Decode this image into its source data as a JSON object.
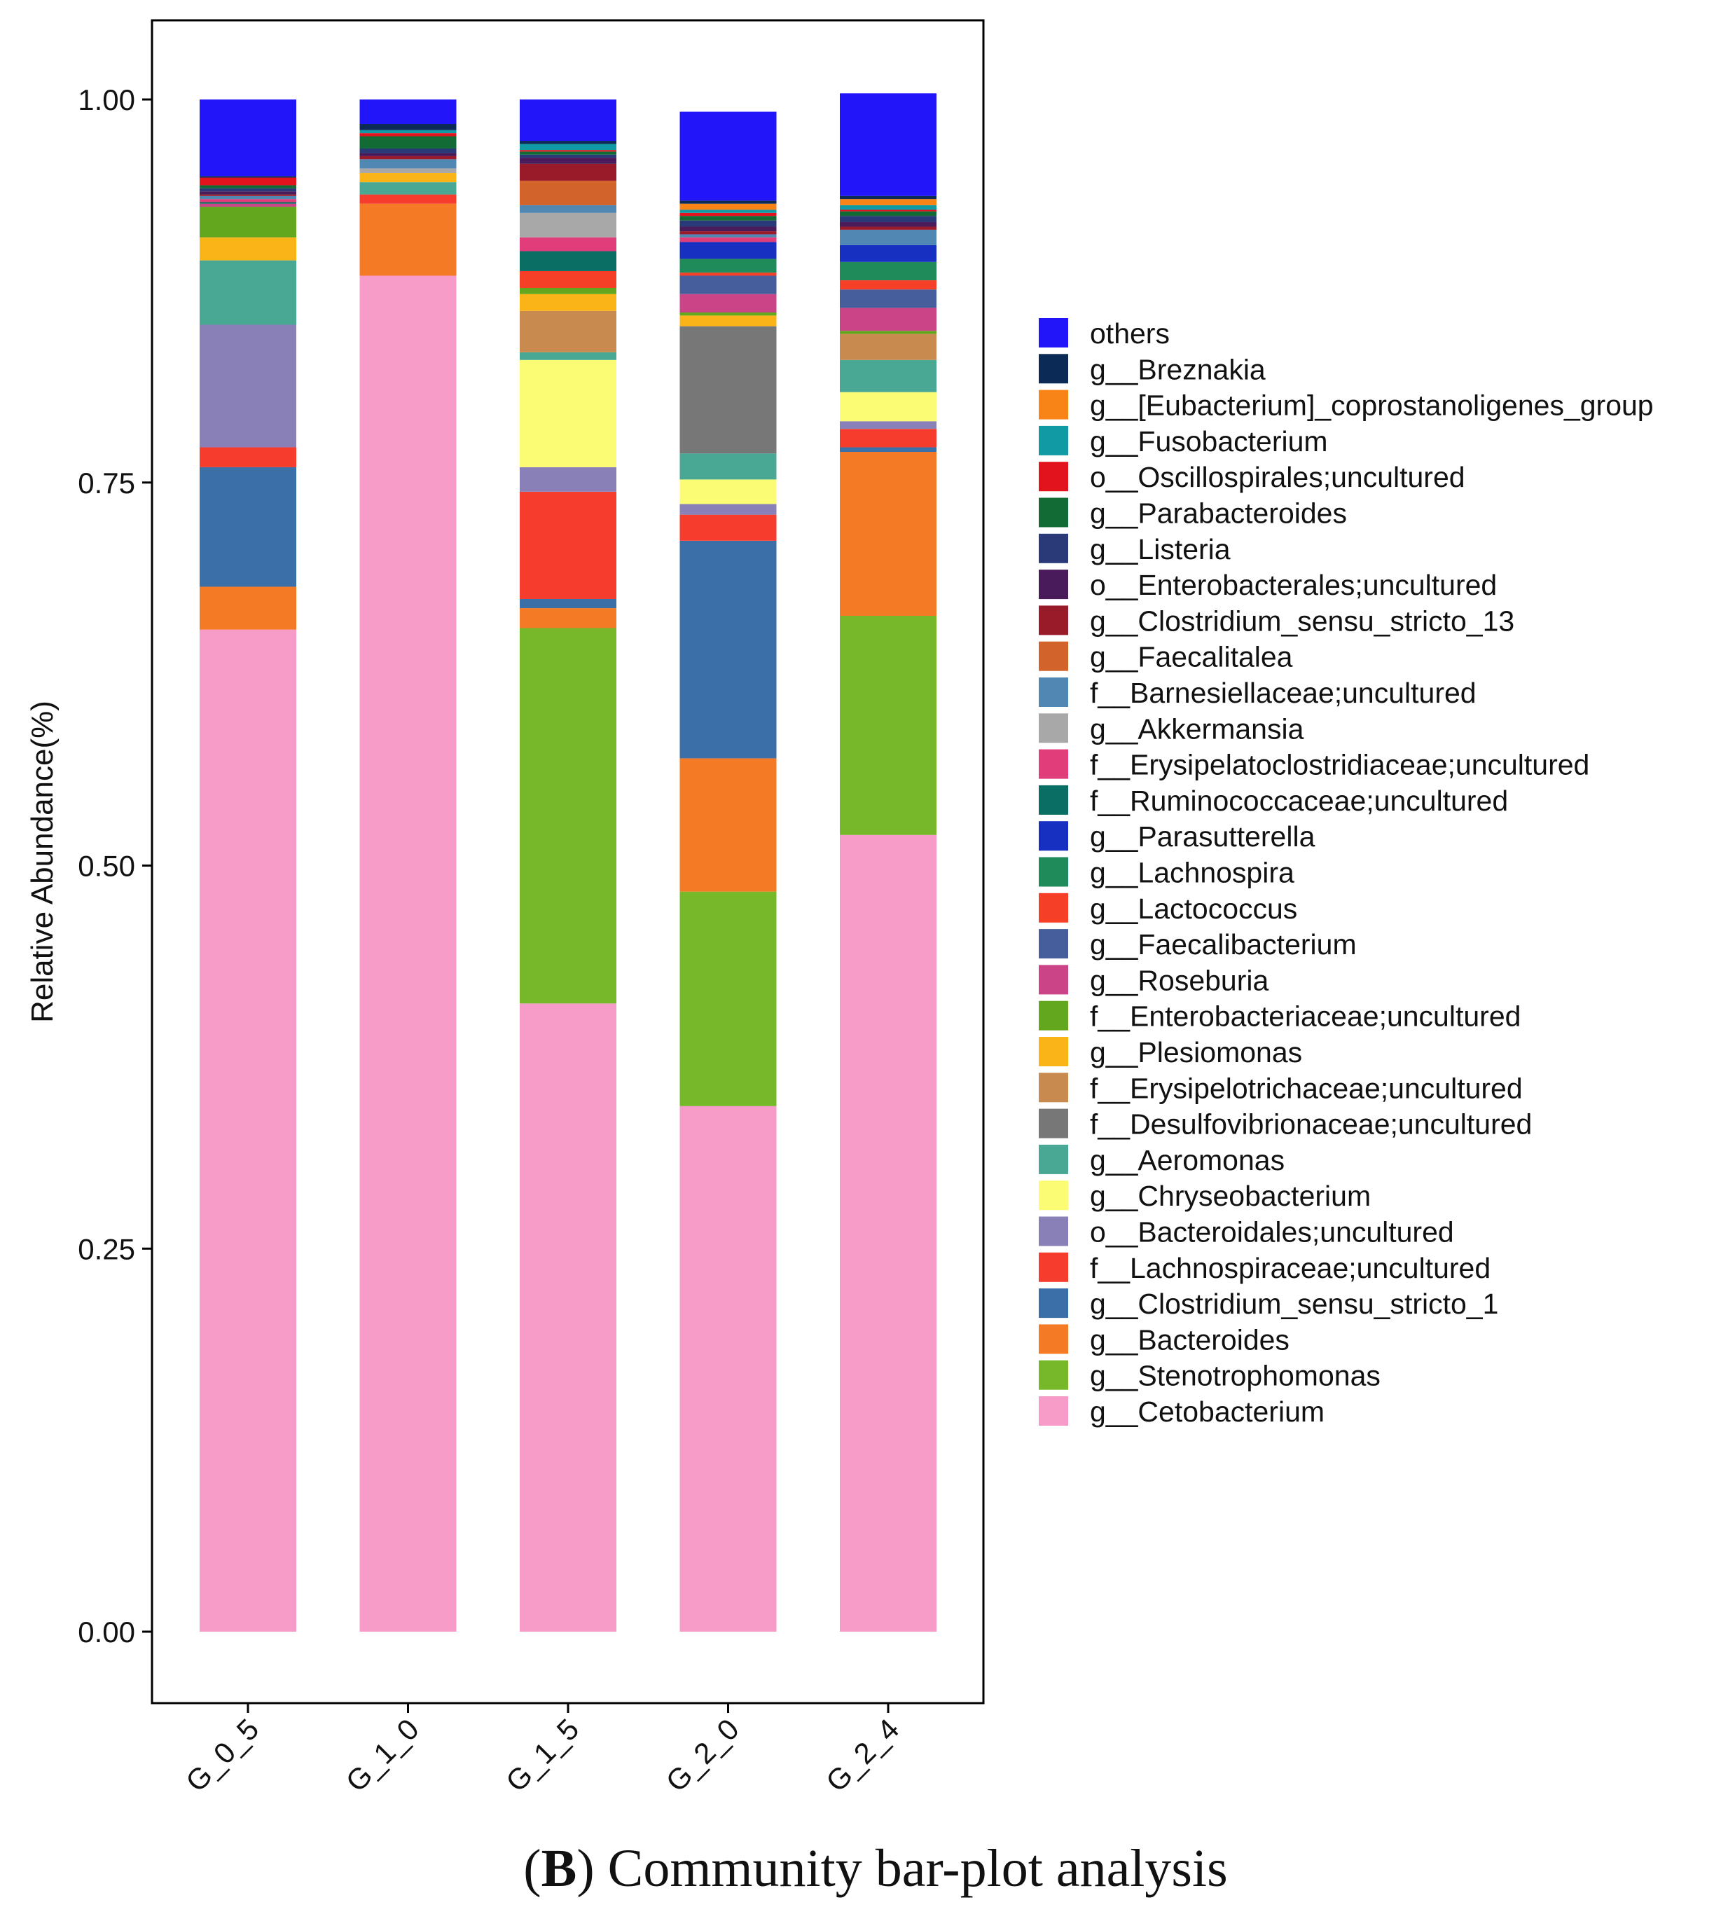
{
  "chart_data": {
    "type": "bar",
    "stacked": true,
    "title": "",
    "xlabel": "",
    "ylabel": "Relative Abundance(%)",
    "ylim": [
      -0.05,
      1.05
    ],
    "yticks": [
      "0.00",
      "0.25",
      "0.50",
      "0.75",
      "1.00"
    ],
    "grid": false,
    "legend_position": "right",
    "categories": [
      "G_0_5",
      "G_1_0",
      "G_1_5",
      "G_2_0",
      "G_2_4"
    ],
    "series": [
      {
        "name": "g__Cetobacterium",
        "color": "#f79cc8",
        "values": [
          0.654,
          0.885,
          0.41,
          0.343,
          0.52
        ]
      },
      {
        "name": "g__Stenotrophomonas",
        "color": "#76b82a",
        "values": [
          0.0,
          0.0,
          0.245,
          0.14,
          0.143
        ]
      },
      {
        "name": "g__Bacteroides",
        "color": "#f57a25",
        "values": [
          0.028,
          0.047,
          0.013,
          0.087,
          0.107
        ]
      },
      {
        "name": "g__Clostridium_sensu_stricto_1",
        "color": "#3a6fa8",
        "values": [
          0.078,
          0.0,
          0.006,
          0.142,
          0.003
        ]
      },
      {
        "name": "f__Lachnospiraceae;uncultured",
        "color": "#f53c2d",
        "values": [
          0.013,
          0.006,
          0.07,
          0.017,
          0.012
        ]
      },
      {
        "name": "o__Bacteroidales;uncultured",
        "color": "#8a80b8",
        "values": [
          0.08,
          0.0,
          0.016,
          0.007,
          0.005
        ]
      },
      {
        "name": "g__Chryseobacterium",
        "color": "#fcfc74",
        "values": [
          0.0,
          0.0,
          0.07,
          0.016,
          0.019
        ]
      },
      {
        "name": "g__Aeromonas",
        "color": "#48a894",
        "values": [
          0.042,
          0.008,
          0.005,
          0.017,
          0.021
        ]
      },
      {
        "name": "f__Desulfovibrionaceae;uncultured",
        "color": "#777777",
        "values": [
          0.0,
          0.0,
          0.0,
          0.083,
          0.0
        ]
      },
      {
        "name": "f__Erysipelotrichaceae;uncultured",
        "color": "#c98a50",
        "values": [
          0.0,
          0.0,
          0.027,
          0.0,
          0.017
        ]
      },
      {
        "name": "g__Plesiomonas",
        "color": "#fbb418",
        "values": [
          0.015,
          0.006,
          0.011,
          0.007,
          0.0
        ]
      },
      {
        "name": "f__Enterobacteriaceae;uncultured",
        "color": "#63a71e",
        "values": [
          0.02,
          0.0,
          0.004,
          0.002,
          0.002
        ]
      },
      {
        "name": "g__Roseburia",
        "color": "#cc4488",
        "values": [
          0.002,
          0.0,
          0.0,
          0.012,
          0.015
        ]
      },
      {
        "name": "g__Faecalibacterium",
        "color": "#475e9c",
        "values": [
          0.0,
          0.0,
          0.0,
          0.012,
          0.012
        ]
      },
      {
        "name": "g__Lactococcus",
        "color": "#f54027",
        "values": [
          0.0,
          0.0,
          0.011,
          0.002,
          0.006
        ]
      },
      {
        "name": "g__Lachnospira",
        "color": "#1f8a5a",
        "values": [
          0.0,
          0.0,
          0.0,
          0.009,
          0.012
        ]
      },
      {
        "name": "g__Parasutterella",
        "color": "#1730c2",
        "values": [
          0.0,
          0.0,
          0.0,
          0.011,
          0.011
        ]
      },
      {
        "name": "f__Ruminococcaceae;uncultured",
        "color": "#0a6e64",
        "values": [
          0.001,
          0.0,
          0.013,
          0.0,
          0.0
        ]
      },
      {
        "name": "f__Erysipelatoclostridiaceae;uncultured",
        "color": "#e03d7a",
        "values": [
          0.002,
          0.0,
          0.009,
          0.003,
          0.0
        ]
      },
      {
        "name": "g__Akkermansia",
        "color": "#a8a8a8",
        "values": [
          0.0,
          0.003,
          0.016,
          0.0,
          0.0
        ]
      },
      {
        "name": "f__Barnesiellaceae;uncultured",
        "color": "#5087b3",
        "values": [
          0.002,
          0.006,
          0.005,
          0.002,
          0.01
        ]
      },
      {
        "name": "g__Faecalitalea",
        "color": "#d2632a",
        "values": [
          0.0,
          0.0,
          0.016,
          0.0,
          0.0
        ]
      },
      {
        "name": "g__Clostridium_sensu_stricto_13",
        "color": "#991b2a",
        "values": [
          0.001,
          0.002,
          0.011,
          0.002,
          0.002
        ]
      },
      {
        "name": "o__Enterobacterales;uncultured",
        "color": "#4a1b5a",
        "values": [
          0.002,
          0.002,
          0.004,
          0.003,
          0.003
        ]
      },
      {
        "name": "g__Listeria",
        "color": "#2a3a78",
        "values": [
          0.002,
          0.003,
          0.002,
          0.004,
          0.004
        ]
      },
      {
        "name": "g__Parabacteroides",
        "color": "#126b35",
        "values": [
          0.002,
          0.008,
          0.002,
          0.003,
          0.003
        ]
      },
      {
        "name": "o__Oscillospirales;uncultured",
        "color": "#e3131e",
        "values": [
          0.005,
          0.002,
          0.001,
          0.002,
          0.001
        ]
      },
      {
        "name": "g__Fusobacterium",
        "color": "#119aa3",
        "values": [
          0.0,
          0.002,
          0.004,
          0.002,
          0.003
        ]
      },
      {
        "name": "g__[Eubacterium]_coprostanoligenes_group",
        "color": "#f88418",
        "values": [
          0.0,
          0.0,
          0.0,
          0.004,
          0.004
        ]
      },
      {
        "name": "g__Breznakia",
        "color": "#0c2a56",
        "values": [
          0.001,
          0.004,
          0.002,
          0.002,
          0.002
        ]
      },
      {
        "name": "others",
        "color": "#2315fa",
        "values": [
          0.05,
          0.016,
          0.027,
          0.058,
          0.067
        ]
      }
    ],
    "caption": {
      "label": "B",
      "text": "Community bar-plot analysis"
    }
  }
}
